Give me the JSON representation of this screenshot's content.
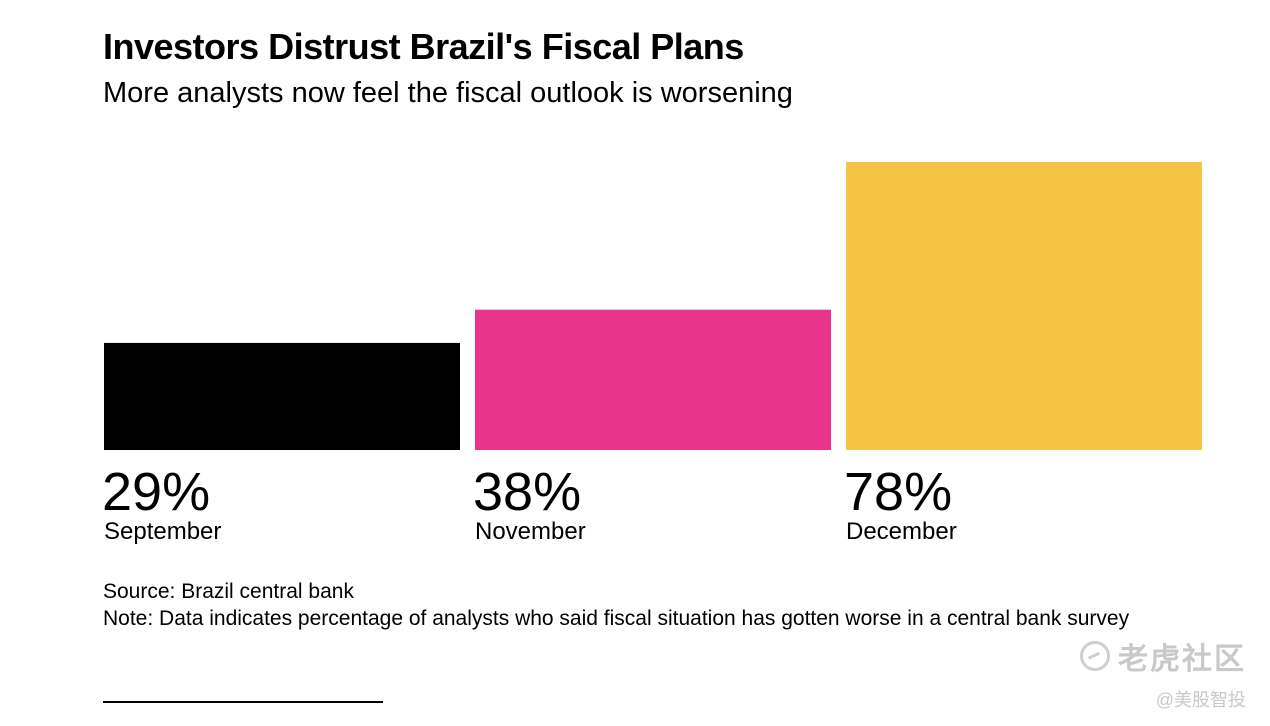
{
  "title": "Investors Distrust Brazil's Fiscal Plans",
  "subtitle": "More analysts now feel the fiscal outlook is worsening",
  "chart_data": {
    "type": "bar",
    "title": "Investors Distrust Brazil's Fiscal Plans",
    "subtitle": "More analysts now feel the fiscal outlook is worsening",
    "categories": [
      "September",
      "November",
      "December"
    ],
    "values": [
      29,
      38,
      78
    ],
    "value_labels": [
      "29%",
      "38%",
      "78%"
    ],
    "unit": "%",
    "colors": [
      "#000000",
      "#e8348a",
      "#f5c443"
    ],
    "ylim": [
      0,
      78
    ],
    "grid": false,
    "axes_shown": false
  },
  "source": "Source: Brazil central bank",
  "note": "Note: Data indicates percentage of analysts who said fiscal situation has gotten worse in a central bank survey",
  "watermark": {
    "main": "老虎社区",
    "sub": "@美股智投"
  }
}
